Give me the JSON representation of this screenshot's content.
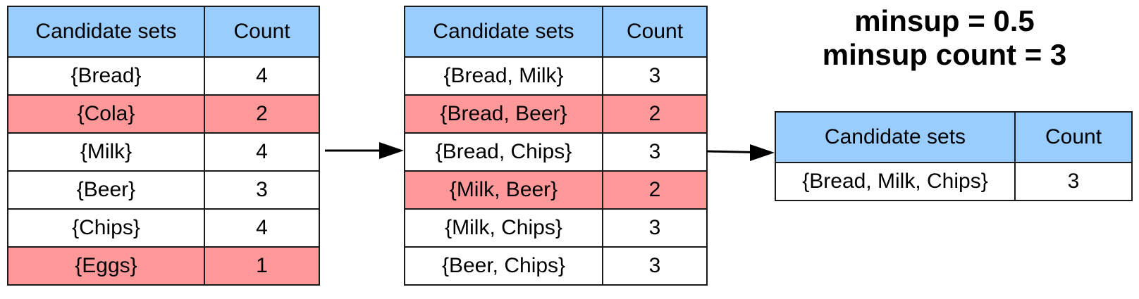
{
  "params": {
    "minsup": "minsup = 0.5",
    "minsup_count": "minsup count = 3"
  },
  "columns": {
    "set": "Candidate sets",
    "count": "Count"
  },
  "tables": [
    {
      "rows": [
        {
          "set": "{Bread}",
          "count": "4",
          "pruned": false
        },
        {
          "set": "{Cola}",
          "count": "2",
          "pruned": true
        },
        {
          "set": "{Milk}",
          "count": "4",
          "pruned": false
        },
        {
          "set": "{Beer}",
          "count": "3",
          "pruned": false
        },
        {
          "set": "{Chips}",
          "count": "4",
          "pruned": false
        },
        {
          "set": "{Eggs}",
          "count": "1",
          "pruned": true
        }
      ]
    },
    {
      "rows": [
        {
          "set": "{Bread, Milk}",
          "count": "3",
          "pruned": false
        },
        {
          "set": "{Bread, Beer}",
          "count": "2",
          "pruned": true
        },
        {
          "set": "{Bread, Chips}",
          "count": "3",
          "pruned": false
        },
        {
          "set": "{Milk, Beer}",
          "count": "2",
          "pruned": true
        },
        {
          "set": "{Milk, Chips}",
          "count": "3",
          "pruned": false
        },
        {
          "set": "{Beer, Chips}",
          "count": "3",
          "pruned": false
        }
      ]
    },
    {
      "rows": [
        {
          "set": "{Bread, Milk, Chips}",
          "count": "3",
          "pruned": false
        }
      ]
    }
  ],
  "colors": {
    "header": "#99ccff",
    "pruned": "#ff9999",
    "kept": "#ffffff",
    "border": "#1a1a1a"
  }
}
